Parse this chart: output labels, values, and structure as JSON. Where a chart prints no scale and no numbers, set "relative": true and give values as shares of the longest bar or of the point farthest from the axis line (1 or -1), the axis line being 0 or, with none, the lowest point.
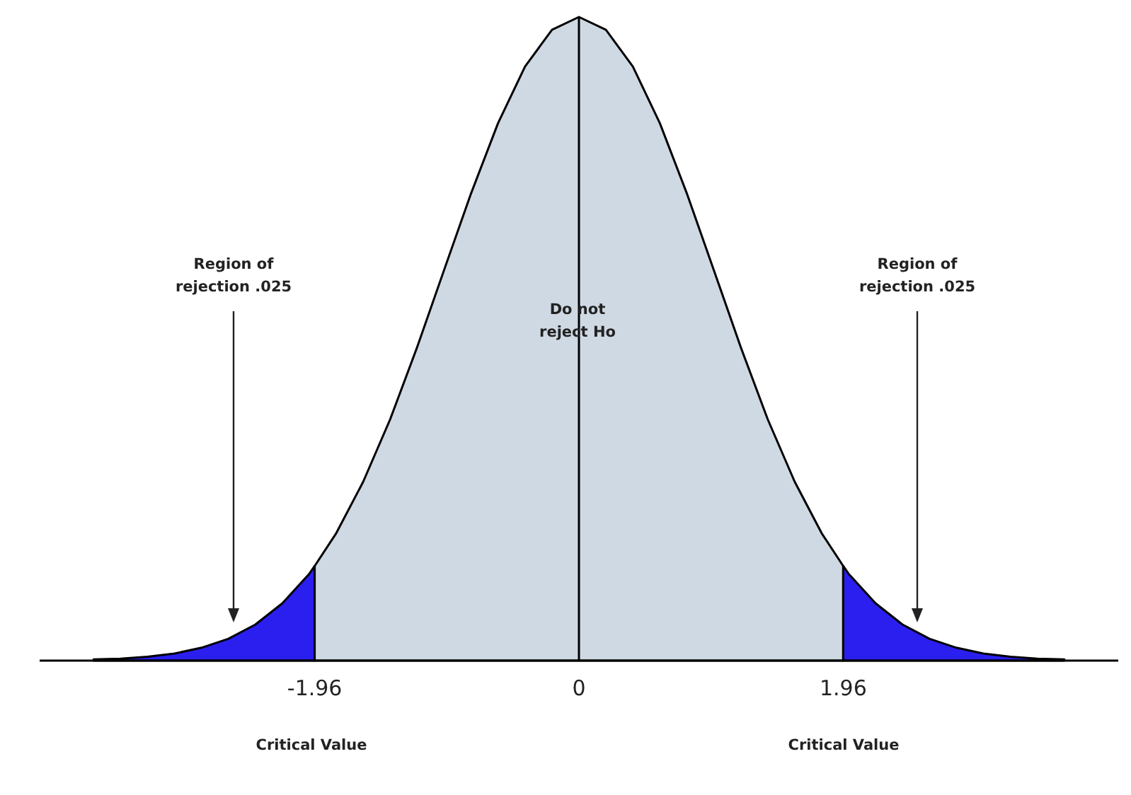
{
  "chart_data": {
    "type": "area",
    "relative": true,
    "xlim": [
      -4,
      4
    ],
    "xticks": [
      -1.96,
      0,
      1.96
    ],
    "series": [
      {
        "color": "#2b1ff0",
        "x": [
          -3.6,
          -3.4,
          -3.2,
          -3.0,
          -2.8,
          -2.6,
          -2.4,
          -2.2,
          -2.0,
          -1.96
        ],
        "values": [
          0.002,
          0.003,
          0.006,
          0.011,
          0.02,
          0.034,
          0.056,
          0.089,
          0.135,
          0.147
        ]
      },
      {
        "color": "#cfd9e3",
        "x": [
          -1.96,
          -1.8,
          -1.6,
          -1.4,
          -1.2,
          -1.0,
          -0.8,
          -0.6,
          -0.4,
          -0.2,
          0,
          0.2,
          0.4,
          0.6,
          0.8,
          1.0,
          1.2,
          1.4,
          1.6,
          1.8,
          1.96
        ],
        "values": [
          0.147,
          0.198,
          0.278,
          0.375,
          0.487,
          0.607,
          0.726,
          0.835,
          0.923,
          0.98,
          1,
          0.98,
          0.923,
          0.835,
          0.726,
          0.607,
          0.487,
          0.375,
          0.278,
          0.198,
          0.147
        ]
      },
      {
        "color": "#2b1ff0",
        "x": [
          1.96,
          2.0,
          2.2,
          2.4,
          2.6,
          2.8,
          3.0,
          3.2,
          3.4,
          3.6
        ],
        "values": [
          0.147,
          0.135,
          0.089,
          0.056,
          0.034,
          0.02,
          0.011,
          0.006,
          0.003,
          0.002
        ]
      }
    ],
    "ref_lines": [
      {
        "axis": "x",
        "value": 0,
        "color": "#000000"
      }
    ],
    "annotations": [
      "Region of rejection .025",
      "Do not reject Ho",
      "Region of rejection .025",
      "Critical Value",
      "Critical Value"
    ]
  }
}
